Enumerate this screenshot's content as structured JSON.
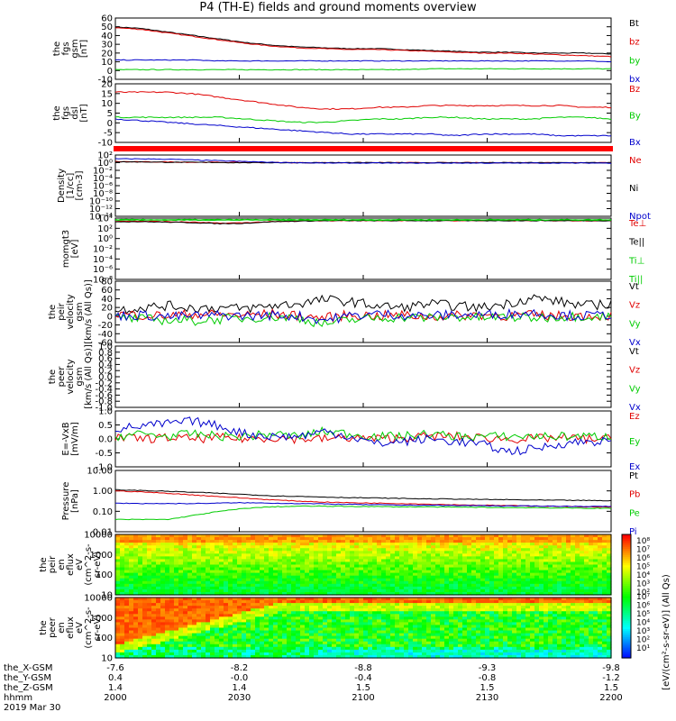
{
  "title": "P4 (TH-E) fields and ground moments overview",
  "colors": {
    "black": "#000000",
    "red": "#e00000",
    "green": "#00cc00",
    "blue": "#0000cc",
    "redband": "#ff0000"
  },
  "chart_data": [
    {
      "type": "line",
      "id": "fgs_gsm",
      "ylabel": [
        "the",
        "fgs",
        "gsm",
        "[nT]"
      ],
      "yticks": [
        "60",
        "50",
        "40",
        "30",
        "20",
        "10",
        "0",
        "-10"
      ],
      "ylim": [
        -10,
        60
      ],
      "series": [
        {
          "name": "Bt",
          "color": "#000000",
          "values": [
            50,
            48,
            44,
            40,
            36,
            32,
            29,
            27,
            26,
            25,
            25,
            24,
            23,
            22,
            21,
            21,
            20,
            20,
            20,
            19
          ]
        },
        {
          "name": "bz",
          "color": "#e00000",
          "values": [
            49,
            47,
            43,
            39,
            35,
            31,
            28,
            26,
            25,
            24,
            24,
            23,
            22,
            21,
            20,
            20,
            19,
            18,
            17,
            16
          ]
        },
        {
          "name": "by",
          "color": "#00cc00",
          "values": [
            1,
            1,
            1,
            1,
            1,
            1,
            1,
            1,
            1,
            1,
            1,
            1,
            2,
            2,
            2,
            2,
            2,
            2,
            2,
            2
          ]
        },
        {
          "name": "bx",
          "color": "#0000cc",
          "values": [
            12,
            12,
            12,
            12,
            11,
            11,
            11,
            11,
            11,
            11,
            11,
            11,
            11,
            11,
            11,
            11,
            11,
            11,
            11,
            10
          ]
        }
      ]
    },
    {
      "type": "line",
      "id": "fgs_dsl",
      "ylabel": [
        "the",
        "fgs",
        "dsl",
        "[nT]"
      ],
      "yticks": [
        "20",
        "15",
        "10",
        "5",
        "0",
        "-5",
        "-10"
      ],
      "ylim": [
        -15,
        20
      ],
      "series": [
        {
          "name": "Bz",
          "color": "#e00000",
          "values": [
            15,
            15,
            15,
            14,
            12,
            10,
            8,
            6,
            5,
            5,
            6,
            6,
            7,
            7,
            7,
            7,
            7,
            7,
            6,
            6
          ]
        },
        {
          "name": "By",
          "color": "#00cc00",
          "values": [
            0,
            0,
            0,
            0,
            0,
            -1,
            -2,
            -3,
            -3,
            -2,
            -1,
            -1,
            0,
            0,
            -1,
            -1,
            -1,
            0,
            0,
            -1
          ]
        },
        {
          "name": "Bx",
          "color": "#0000cc",
          "values": [
            -1,
            -2,
            -3,
            -4,
            -5,
            -6,
            -7,
            -8,
            -9,
            -10,
            -10,
            -10,
            -10,
            -11,
            -10,
            -10,
            -10,
            -11,
            -11,
            -11
          ]
        }
      ]
    },
    {
      "type": "line",
      "id": "density",
      "ylabel": [
        "Density",
        "[1/cc]",
        "[cm-3]"
      ],
      "yticks": [
        "10²",
        "10⁰",
        "10⁻²",
        "10⁻⁴",
        "10⁻⁶",
        "10⁻⁸",
        "10⁻¹⁰",
        "10⁻¹²",
        "10⁻¹⁴"
      ],
      "ylim": [
        -14,
        2
      ],
      "log": true,
      "series": [
        {
          "name": "Ne",
          "color": "#e00000",
          "values": [
            0.3,
            0.2,
            0.2,
            0.1,
            0.1,
            0.05,
            0.05,
            0,
            0,
            0,
            0,
            0,
            0,
            0,
            0,
            0,
            0,
            0,
            0,
            0
          ]
        },
        {
          "name": "Ni",
          "color": "#000000",
          "values": [
            0.2,
            0.2,
            0.1,
            0.1,
            0.05,
            0,
            0,
            0,
            0,
            0,
            0,
            0,
            0,
            0,
            0,
            0,
            0,
            0,
            0,
            0
          ]
        },
        {
          "name": "Npot",
          "color": "#0000cc",
          "values": [
            1,
            1,
            0.9,
            0.7,
            0.5,
            0.3,
            0.1,
            0,
            -0.1,
            -0.1,
            -0.1,
            -0.1,
            -0.1,
            -0.1,
            -0.1,
            -0.1,
            -0.1,
            -0.1,
            -0.1,
            -0.1
          ]
        }
      ]
    },
    {
      "type": "line",
      "id": "momgt3",
      "ylabel": [
        "momgt3",
        "[eV]"
      ],
      "yticks": [
        "10⁴",
        "10²",
        "10⁰",
        "10⁻²",
        "10⁻⁴",
        "10⁻⁶",
        "10⁻⁸"
      ],
      "ylim": [
        -8,
        4
      ],
      "log": true,
      "series": [
        {
          "name": "Te⊥",
          "color": "#e00000",
          "values": [
            3.4,
            3.4,
            3.3,
            3.2,
            3.0,
            3.1,
            3.3,
            3.4,
            3.5,
            3.5,
            3.5,
            3.5,
            3.5,
            3.5,
            3.5,
            3.5,
            3.5,
            3.5,
            3.5,
            3.5
          ]
        },
        {
          "name": "Te||",
          "color": "#000000",
          "values": [
            3.3,
            3.3,
            3.2,
            3.1,
            2.9,
            3.0,
            3.3,
            3.4,
            3.5,
            3.5,
            3.5,
            3.5,
            3.5,
            3.5,
            3.5,
            3.5,
            3.5,
            3.5,
            3.5,
            3.5
          ]
        },
        {
          "name": "Ti⊥",
          "color": "#00cc00",
          "values": [
            3.6,
            3.6,
            3.6,
            3.6,
            3.6,
            3.6,
            3.6,
            3.6,
            3.6,
            3.6,
            3.6,
            3.6,
            3.6,
            3.6,
            3.6,
            3.6,
            3.6,
            3.6,
            3.6,
            3.6
          ]
        },
        {
          "name": "Ti||",
          "color": "#00cc00",
          "values": [
            3.7,
            3.7,
            3.7,
            3.7,
            3.7,
            3.7,
            3.7,
            3.7,
            3.7,
            3.7,
            3.7,
            3.7,
            3.7,
            3.7,
            3.7,
            3.7,
            3.7,
            3.7,
            3.7,
            3.7
          ]
        }
      ]
    },
    {
      "type": "line",
      "id": "peir_velocity",
      "ylabel": [
        "the",
        "peir",
        "velocity",
        "gsm",
        "[km/s (All Qs)]"
      ],
      "yticks": [
        "80",
        "60",
        "40",
        "20",
        "0",
        "-20",
        "-40",
        "-60"
      ],
      "ylim": [
        -65,
        85
      ],
      "series": [
        {
          "name": "Vt",
          "color": "#000000",
          "values": [
            15,
            20,
            25,
            20,
            20,
            18,
            25,
            30,
            40,
            35,
            25,
            20,
            30,
            25,
            20,
            30,
            45,
            35,
            25,
            30
          ]
        },
        {
          "name": "Vz",
          "color": "#e00000",
          "values": [
            5,
            2,
            0,
            5,
            3,
            2,
            5,
            0,
            -5,
            3,
            0,
            2,
            -2,
            0,
            3,
            0,
            2,
            0,
            1,
            0
          ]
        },
        {
          "name": "Vy",
          "color": "#00cc00",
          "values": [
            -5,
            -8,
            -10,
            -12,
            -8,
            -5,
            -2,
            -5,
            -20,
            -10,
            -5,
            -3,
            -5,
            -2,
            -5,
            -3,
            -5,
            -2,
            0,
            -2
          ]
        },
        {
          "name": "Vx",
          "color": "#0000cc",
          "values": [
            0,
            2,
            -2,
            0,
            2,
            0,
            2,
            0,
            -10,
            0,
            5,
            2,
            0,
            3,
            2,
            5,
            8,
            2,
            0,
            3
          ]
        }
      ]
    },
    {
      "type": "line",
      "id": "peer_velocity",
      "ylabel": [
        "the",
        "peer",
        "velocity",
        "gsm",
        "[km/s (All Qs)]"
      ],
      "yticks": [
        "1.0",
        "0.8",
        "0.6",
        "0.4",
        "0.2",
        "0.0",
        "-0.2",
        "-0.4",
        "-0.6",
        "-0.8",
        "-1.0"
      ],
      "ylim": [
        -1.0,
        1.0
      ],
      "legend": [
        "Vt",
        "Vz",
        "Vy",
        "Vx"
      ],
      "legend_colors": [
        "#000000",
        "#e00000",
        "#00cc00",
        "#0000cc"
      ]
    },
    {
      "type": "line",
      "id": "efield",
      "ylabel": [
        "E=-VxB",
        "[mV/m]"
      ],
      "yticks": [
        "1.0",
        "0.5",
        "0.0",
        "-0.5",
        "-1.0"
      ],
      "ylim": [
        -1.1,
        1.1
      ],
      "series": [
        {
          "name": "Ez",
          "color": "#e00000",
          "values": [
            0.05,
            0,
            0.05,
            0,
            0.05,
            0,
            0.05,
            0,
            0,
            0.05,
            0,
            0.05,
            0.1,
            0.1,
            0.05,
            0,
            0,
            0.05,
            0,
            0
          ]
        },
        {
          "name": "Ey",
          "color": "#00cc00",
          "values": [
            0.1,
            0.2,
            0.1,
            0.2,
            0.1,
            0.1,
            0.2,
            0.1,
            0.3,
            0.2,
            0.1,
            0.1,
            0.2,
            0.1,
            0.1,
            0.1,
            0.1,
            0.1,
            0.1,
            0.1
          ]
        },
        {
          "name": "Ex",
          "color": "#0000cc",
          "values": [
            0.4,
            0.5,
            0.6,
            0.7,
            0.5,
            0.2,
            0.1,
            0.1,
            0.3,
            0.1,
            -0.2,
            -0.1,
            0,
            -0.1,
            -0.2,
            -0.5,
            -0.4,
            -0.2,
            -0.1,
            -0.1
          ]
        }
      ]
    },
    {
      "type": "line",
      "id": "pressure",
      "ylabel": [
        "Pressure",
        "[nPa]"
      ],
      "yticks": [
        "10.00",
        "1.00",
        "0.10",
        "0.01"
      ],
      "ylim": [
        -2,
        1
      ],
      "log": true,
      "series": [
        {
          "name": "Pt",
          "color": "#000000",
          "values": [
            0.05,
            0.02,
            -0.02,
            -0.07,
            -0.12,
            -0.18,
            -0.24,
            -0.27,
            -0.3,
            -0.33,
            -0.35,
            -0.37,
            -0.39,
            -0.4,
            -0.42,
            -0.43,
            -0.45,
            -0.46,
            -0.47,
            -0.48
          ]
        },
        {
          "name": "Pb",
          "color": "#e00000",
          "values": [
            0.0,
            -0.05,
            -0.12,
            -0.2,
            -0.28,
            -0.36,
            -0.44,
            -0.5,
            -0.55,
            -0.58,
            -0.6,
            -0.62,
            -0.65,
            -0.68,
            -0.7,
            -0.72,
            -0.74,
            -0.76,
            -0.78,
            -0.8
          ]
        },
        {
          "name": "Pe",
          "color": "#00cc00",
          "values": [
            -1.4,
            -1.4,
            -1.4,
            -1.2,
            -1.0,
            -0.85,
            -0.78,
            -0.75,
            -0.75,
            -0.76,
            -0.77,
            -0.78,
            -0.78,
            -0.8,
            -0.8,
            -0.82,
            -0.82,
            -0.84,
            -0.85,
            -0.86
          ]
        },
        {
          "name": "Pi",
          "color": "#0000cc",
          "values": [
            -0.6,
            -0.62,
            -0.62,
            -0.62,
            -0.6,
            -0.58,
            -0.6,
            -0.62,
            -0.64,
            -0.66,
            -0.68,
            -0.7,
            -0.7,
            -0.72,
            -0.72,
            -0.74,
            -0.74,
            -0.75,
            -0.76,
            -0.76
          ]
        }
      ]
    },
    {
      "type": "heatmap",
      "id": "peir_eflux",
      "ylabel": [
        "the",
        "peir",
        "en",
        "eflux",
        "eV",
        "(cm^2-s-",
        "sr-eV)"
      ],
      "yticks": [
        "10000",
        "1000",
        "100",
        "10"
      ],
      "ylim": [
        1,
        4.3
      ]
    },
    {
      "type": "heatmap",
      "id": "peer_eflux",
      "ylabel": [
        "the",
        "peer",
        "en",
        "eflux",
        "eV",
        "(cm^2-s-",
        "sr-eV)"
      ],
      "yticks": [
        "10000",
        "1000",
        "100",
        "10"
      ],
      "ylim": [
        1,
        4.3
      ]
    }
  ],
  "colorbar": {
    "label": "[eV/(cm²-s-sr-eV)] (All Qs)",
    "ticks_top": [
      "10⁸",
      "10⁷",
      "10⁶",
      "10⁵",
      "10⁴",
      "10³",
      "10²"
    ],
    "ticks_bottom": [
      "10⁷",
      "10⁶",
      "10⁵",
      "10⁴",
      "10³",
      "10²",
      "10¹"
    ]
  },
  "xaxis": {
    "ticks": [
      "2000",
      "2030",
      "2100",
      "2130",
      "2200"
    ],
    "rows": [
      {
        "label": "the_X-GSM",
        "values": [
          "-7.6",
          "-8.2",
          "-8.8",
          "-9.3",
          "-9.8"
        ]
      },
      {
        "label": "the_Y-GSM",
        "values": [
          "0.4",
          "-0.0",
          "-0.4",
          "-0.8",
          "-1.2"
        ]
      },
      {
        "label": "the_Z-GSM",
        "values": [
          "1.4",
          "1.4",
          "1.5",
          "1.5",
          "1.5"
        ]
      },
      {
        "label": "hhmm",
        "values": [
          "2000",
          "2030",
          "2100",
          "2130",
          "2200"
        ]
      }
    ],
    "date": "2019 Mar 30"
  }
}
